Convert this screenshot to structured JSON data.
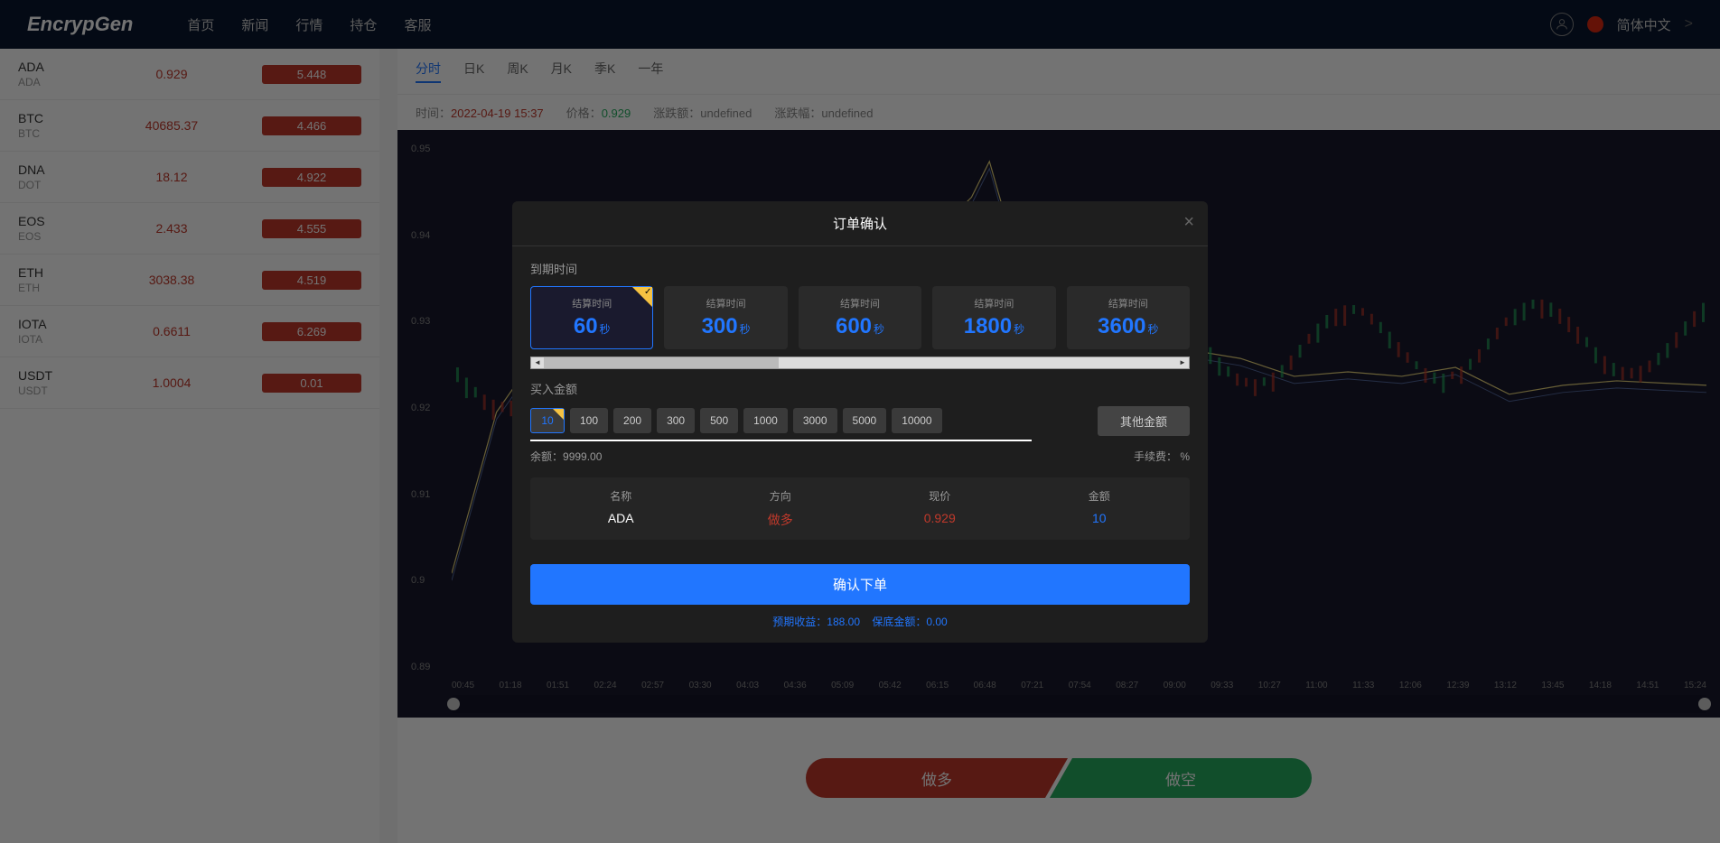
{
  "header": {
    "logo": "EncrypGen",
    "nav": [
      "首页",
      "新闻",
      "行情",
      "持仓",
      "客服"
    ],
    "language": "简体中文"
  },
  "sidebar": {
    "coins": [
      {
        "sym": "ADA",
        "sub": "ADA",
        "price": "0.929",
        "badge": "5.448"
      },
      {
        "sym": "BTC",
        "sub": "BTC",
        "price": "40685.37",
        "badge": "4.466"
      },
      {
        "sym": "DNA",
        "sub": "DOT",
        "price": "18.12",
        "badge": "4.922"
      },
      {
        "sym": "EOS",
        "sub": "EOS",
        "price": "2.433",
        "badge": "4.555"
      },
      {
        "sym": "ETH",
        "sub": "ETH",
        "price": "3038.38",
        "badge": "4.519"
      },
      {
        "sym": "IOTA",
        "sub": "IOTA",
        "price": "0.6611",
        "badge": "6.269"
      },
      {
        "sym": "USDT",
        "sub": "USDT",
        "price": "1.0004",
        "badge": "0.01"
      }
    ]
  },
  "timeframes": {
    "items": [
      "分时",
      "日K",
      "周K",
      "月K",
      "季K",
      "一年"
    ],
    "active": 0
  },
  "chartInfo": {
    "time_label": "时间：",
    "time_value": "2022-04-19 15:37",
    "price_label": "价格：",
    "price_value": "0.929",
    "chg_label": "涨跌额：",
    "chg_value": "undefined",
    "pct_label": "涨跌幅：",
    "pct_value": "undefined"
  },
  "chart": {
    "y_ticks": [
      "0.95",
      "0.94",
      "0.93",
      "0.92",
      "0.91",
      "0.9",
      "0.89"
    ],
    "x_ticks": [
      "00:45",
      "01:18",
      "01:51",
      "02:24",
      "02:57",
      "03:30",
      "04:03",
      "04:36",
      "05:09",
      "05:42",
      "06:15",
      "06:48",
      "07:21",
      "07:54",
      "08:27",
      "09:00",
      "09:33",
      "10:27",
      "11:00",
      "11:33",
      "12:06",
      "12:39",
      "13:12",
      "13:45",
      "14:18",
      "14:51",
      "15:24"
    ],
    "line_path": "M0,480 L50,300 L120,200 L200,150 L280,140 L360,135 L440,130 L520,120 L580,60 L600,20 L620,90 L640,150 L700,220 L760,240 L820,230 L880,240 L940,260 L1000,255 L1060,260 L1120,250 L1180,280 L1240,270 L1300,265 L1360,268 L1400,270",
    "colors": {
      "bg": "#1a1a2e",
      "line": "#e8d57a",
      "grid": "#2a2a3e"
    }
  },
  "actions": {
    "long": "做多",
    "short": "做空"
  },
  "modal": {
    "title": "订单确认",
    "expiry_label": "到期时间",
    "time_options": [
      {
        "label": "结算时间",
        "val": "60",
        "unit": "秒",
        "selected": true
      },
      {
        "label": "结算时间",
        "val": "300",
        "unit": "秒",
        "selected": false
      },
      {
        "label": "结算时间",
        "val": "600",
        "unit": "秒",
        "selected": false
      },
      {
        "label": "结算时间",
        "val": "1800",
        "unit": "秒",
        "selected": false
      },
      {
        "label": "结算时间",
        "val": "3600",
        "unit": "秒",
        "selected": false
      }
    ],
    "amount_label": "买入金额",
    "amounts": [
      "10",
      "100",
      "200",
      "300",
      "500",
      "1000",
      "3000",
      "5000",
      "10000"
    ],
    "amount_selected": 0,
    "other_amount": "其他金额",
    "balance_label": "余额：",
    "balance_value": "9999.00",
    "fee_label": "手续费：",
    "fee_value": "%",
    "summary": {
      "name_label": "名称",
      "name_value": "ADA",
      "dir_label": "方向",
      "dir_value": "做多",
      "price_label": "现价",
      "price_value": "0.929",
      "amt_label": "金额",
      "amt_value": "10"
    },
    "confirm": "确认下单",
    "footer": {
      "expected_label": "预期收益：",
      "expected_value": "188.00",
      "guaranteed_label": "保底金额：",
      "guaranteed_value": "0.00"
    }
  }
}
